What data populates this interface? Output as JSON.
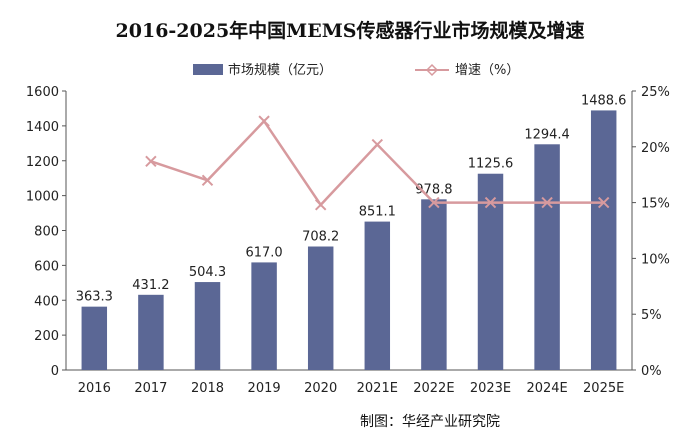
{
  "chart_data": {
    "type": "bar+line",
    "title": "2016-2025年中国MEMS传感器行业市场规模及增速",
    "categories": [
      "2016",
      "2017",
      "2018",
      "2019",
      "2020",
      "2021E",
      "2022E",
      "2023E",
      "2024E",
      "2025E"
    ],
    "series": [
      {
        "name": "市场规模（亿元）",
        "type": "bar",
        "axis": "left",
        "color": "#5b6795",
        "values": [
          363.3,
          431.2,
          504.3,
          617.0,
          708.2,
          851.1,
          978.8,
          1125.6,
          1294.4,
          1488.6
        ],
        "labels": [
          "363.3",
          "431.2",
          "504.3",
          "617.0",
          "708.2",
          "851.1",
          "978.8",
          "1125.6",
          "1294.4",
          "1488.6"
        ]
      },
      {
        "name": "增速（%）",
        "type": "line",
        "axis": "right",
        "color": "#d79a9e",
        "values": [
          null,
          18.7,
          17.0,
          22.3,
          14.8,
          20.2,
          15.0,
          15.0,
          15.0,
          15.0
        ]
      }
    ],
    "y_left": {
      "min": 0,
      "max": 1600,
      "ticks": [
        "0",
        "200",
        "400",
        "600",
        "800",
        "1000",
        "1200",
        "1400",
        "1600"
      ]
    },
    "y_right": {
      "min": 0,
      "max": 25,
      "ticks": [
        "0%",
        "5%",
        "10%",
        "15%",
        "20%",
        "25%"
      ]
    },
    "legend_position": "top",
    "grid": false
  },
  "source_note": "制图：华经产业研究院"
}
